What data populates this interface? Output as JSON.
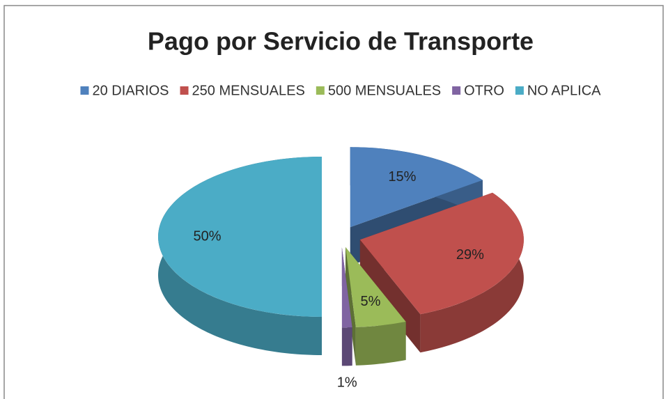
{
  "chart_data": {
    "type": "pie",
    "title": "Pago por Servicio de Transporte",
    "categories": [
      "20 DIARIOS",
      "250 MENSUALES",
      "500 MENSUALES",
      "OTRO",
      "NO APLICA"
    ],
    "values": [
      15,
      29,
      5,
      1,
      50
    ],
    "value_labels": [
      "15%",
      "29%",
      "5%",
      "1%",
      "50%"
    ],
    "colors": [
      "#4f81bd",
      "#c0504d",
      "#9bbb59",
      "#8064a2",
      "#4bacc6"
    ],
    "legend": "top"
  }
}
